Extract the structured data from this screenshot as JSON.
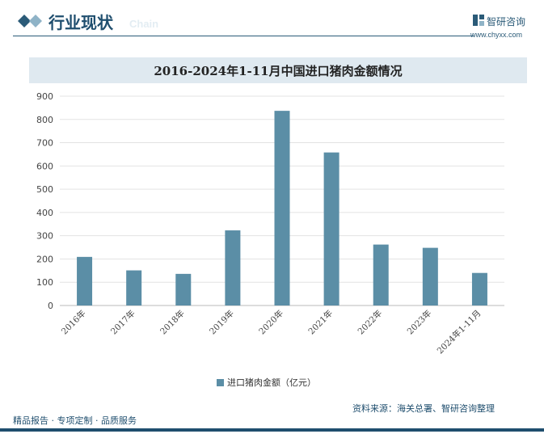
{
  "header": {
    "title": "行业现状",
    "subtitle_en": "Chain",
    "brand_name": "智研咨询",
    "brand_url": "www.chyxx.com"
  },
  "chart_data": {
    "type": "bar",
    "title": "2016-2024年1-11月中国进口猪肉金额情况",
    "categories": [
      "2016年",
      "2017年",
      "2018年",
      "2019年",
      "2020年",
      "2021年",
      "2022年",
      "2023年",
      "2024年1-11月"
    ],
    "series": [
      {
        "name": "进口猪肉金额（亿元）",
        "values": [
          209,
          151,
          136,
          323,
          837,
          658,
          262,
          248,
          140
        ]
      }
    ],
    "ylim": [
      0,
      900
    ],
    "yticks": [
      "0",
      "100",
      "200",
      "300",
      "400",
      "500",
      "600",
      "700",
      "800",
      "900"
    ],
    "grid": true,
    "legend_position": "bottom",
    "bar_color": "#5b8ea6"
  },
  "footer": {
    "left": "精品报告 · 专项定制 · 品质服务",
    "source": "资料来源：海关总署、智研咨询整理"
  }
}
